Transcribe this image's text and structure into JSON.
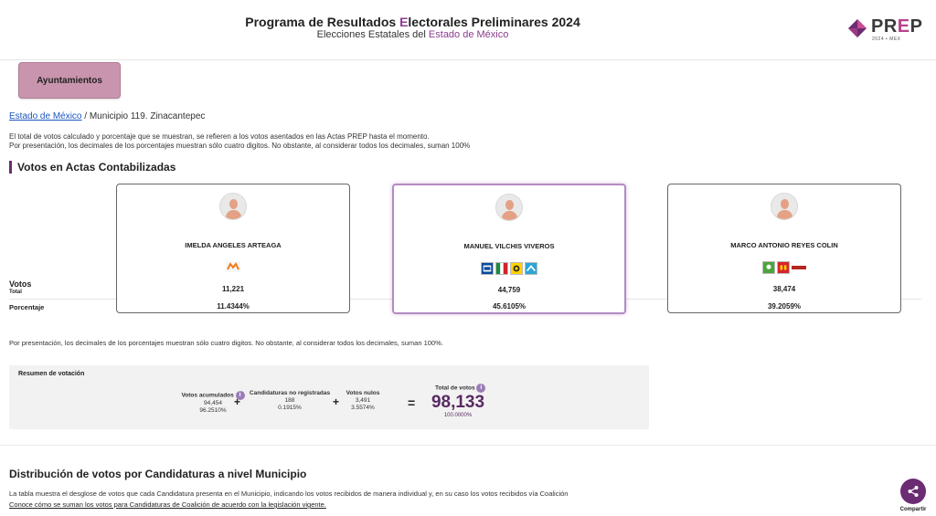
{
  "header": {
    "title_pre": "Programa de Resultados ",
    "title_accent": "E",
    "title_post": "lectorales Preliminares 2024",
    "subtitle_pre": "Elecciones Estatales del ",
    "subtitle_accent": "Estado de México",
    "logo_text_pre": "PR",
    "logo_text_accent": "E",
    "logo_text_post": "P",
    "logo_sub": "2024 • MEX"
  },
  "tab": {
    "label": "Ayuntamientos"
  },
  "breadcrumb": {
    "link": "Estado de México",
    "current": " / Municipio 119. Zinacantepec"
  },
  "notes": {
    "line1": "El total de votos calculado y porcentaje que se muestran, se refieren a los votos asentados en las Actas PREP hasta el momento.",
    "line2": "Por presentación, los decimales de los porcentajes muestran sólo cuatro digitos. No obstante, al considerar todos los decimales, suman 100%",
    "line3": "Por presentación, los decimales de los porcentajes muestran sólo cuatro digitos. No obstante, al considerar todos los decimales, suman 100%."
  },
  "section": {
    "title": "Votos en Actas Contabilizadas"
  },
  "rows": {
    "votos": "Votos",
    "total": "Total",
    "porcentaje": "Porcentaje"
  },
  "candidates": [
    {
      "name": "IMELDA ANGELES ARTEAGA",
      "votes": "11,221",
      "pct": "11.4344%",
      "party_icons": [
        "mc-logo-icon"
      ]
    },
    {
      "name": "MANUEL VILCHIS VIVEROS",
      "votes": "44,759",
      "pct": "45.6105%",
      "party_icons": [
        "pan-logo-icon",
        "pri-logo-icon",
        "prd-logo-icon",
        "nueva-alianza-logo-icon"
      ]
    },
    {
      "name": "MARCO ANTONIO REYES COLIN",
      "votes": "38,474",
      "pct": "39.2059%",
      "party_icons": [
        "pvem-logo-icon",
        "pt-logo-icon",
        "morena-logo-icon"
      ]
    }
  ],
  "summary": {
    "title": "Resumen de votación",
    "acumulados_label": "Votos acumulados",
    "acumulados_value": "94,454",
    "acumulados_pct": "96.2510%",
    "no_reg_label": "Candidaturas no registradas",
    "no_reg_value": "188",
    "no_reg_pct": "0.1915%",
    "nulos_label": "Votos nulos",
    "nulos_value": "3,491",
    "nulos_pct": "3.5574%",
    "total_label": "Total de votos",
    "total_value": "98,133",
    "total_pct": "100.0000%",
    "plus": "+",
    "equals": "=",
    "info": "i"
  },
  "distribution": {
    "title": "Distribución de votos por Candidaturas a nivel Municipio",
    "text": "La tabla muestra el desglose de votos que cada Candidatura presenta en el Municipio, indicando los votos recibidos de manera individual y, en su caso los votos recibidos vía Coalición",
    "link": "Conoce cómo se suman los votos para Candidaturas de Coalición de acuerdo con la legislación vigente."
  },
  "share": {
    "label": "Compartir"
  },
  "colors": {
    "accent": "#6b2c73",
    "tab_bg": "#c994ae",
    "selected_border": "#b48bc2"
  }
}
